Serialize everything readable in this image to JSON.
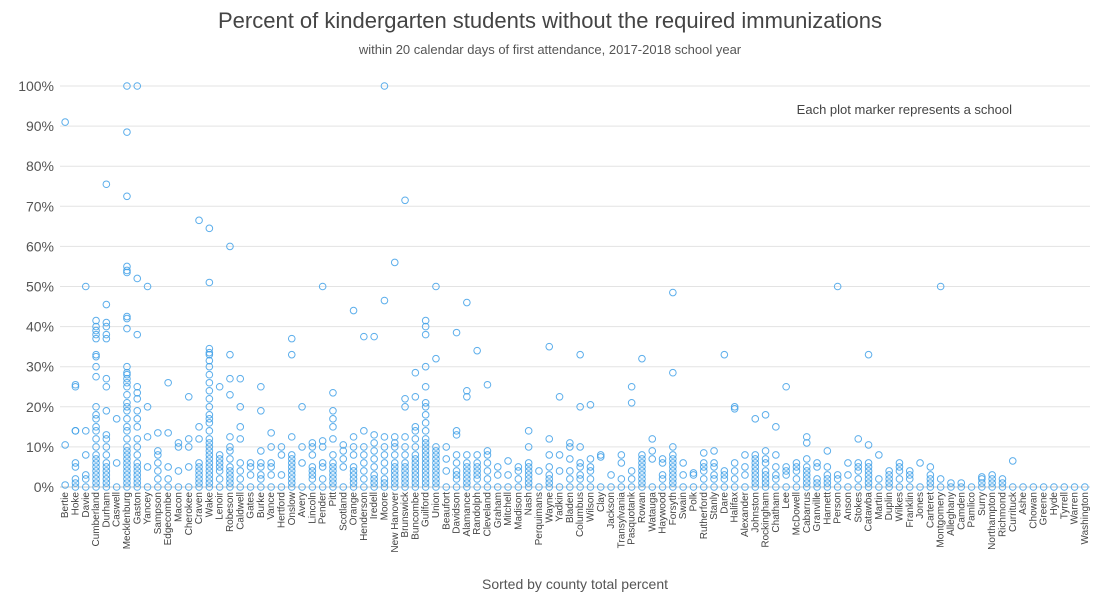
{
  "chart_data": {
    "type": "scatter",
    "title": "Percent of kindergarten students without the required immunizations",
    "subtitle": "within 20 calendar days of first attendance, 2017-2018 school year",
    "xlabel": "Sorted by county total percent",
    "ylabel": "",
    "annotation": "Each plot marker represents a school",
    "ylim": [
      0,
      100
    ],
    "yticks": [
      "0%",
      "10%",
      "20%",
      "30%",
      "40%",
      "50%",
      "60%",
      "70%",
      "80%",
      "90%",
      "100%"
    ],
    "grid": true,
    "marker_color": "#3fa0e8",
    "categories": [
      "Bertie",
      "Hoke",
      "Davie",
      "Cumberland",
      "Durham",
      "Caswell",
      "Mecklenburg",
      "Gaston",
      "Yancey",
      "Sampson",
      "Edgecombe",
      "Macon",
      "Cherokee",
      "Craven",
      "Wake",
      "Lenoir",
      "Robeson",
      "Caldwell",
      "Gates",
      "Burke",
      "Vance",
      "Hertford",
      "Onslow",
      "Avery",
      "Lincoln",
      "Pender",
      "Pitt",
      "Scotland",
      "Orange",
      "Henderson",
      "Iredell",
      "Moore",
      "New Hanover",
      "Brunswick",
      "Buncombe",
      "Guilford",
      "Union",
      "Beaufort",
      "Davidson",
      "Alamance",
      "Randolph",
      "Cleveland",
      "Graham",
      "Mitchell",
      "Madison",
      "Nash",
      "Perquimans",
      "Wayne",
      "Yadkin",
      "Bladen",
      "Columbus",
      "Wilson",
      "Clay",
      "Jackson",
      "Transylvania",
      "Pasquotank",
      "Rowan",
      "Watauga",
      "Haywood",
      "Forsyth",
      "Swain",
      "Polk",
      "Rutherford",
      "Stanly",
      "Dare",
      "Halifax",
      "Alexander",
      "Johnston",
      "Rockingham",
      "Chatham",
      "Lee",
      "McDowell",
      "Cabarrus",
      "Granville",
      "Harnett",
      "Person",
      "Anson",
      "Stokes",
      "Catawba",
      "Martin",
      "Duplin",
      "Wilkes",
      "Franklin",
      "Jones",
      "Carteret",
      "Montgomery",
      "Alleghany",
      "Camden",
      "Pamlico",
      "Surry",
      "Northampton",
      "Richmond",
      "Currituck",
      "Ashe",
      "Chowan",
      "Greene",
      "Hyde",
      "Tyrrell",
      "Warren",
      "Washington"
    ],
    "series": [
      {
        "category": "Bertie",
        "values": [
          91,
          10.5,
          0.5
        ]
      },
      {
        "category": "Hoke",
        "values": [
          25.5,
          25,
          14,
          14,
          6,
          5,
          2,
          1,
          0
        ]
      },
      {
        "category": "Davie",
        "values": [
          50,
          14,
          8,
          3,
          2,
          0
        ]
      },
      {
        "category": "Cumberland",
        "values": [
          41.5,
          40,
          39,
          38,
          37,
          33,
          32.5,
          30,
          27.5,
          20,
          18,
          17,
          15,
          14,
          12,
          10,
          8,
          7,
          6,
          5,
          4,
          3,
          2,
          1,
          0
        ]
      },
      {
        "category": "Durham",
        "values": [
          75.5,
          45.5,
          41,
          40,
          38,
          37,
          27,
          25,
          19,
          13,
          12,
          10,
          8,
          6,
          5,
          4,
          3,
          2,
          1,
          0
        ]
      },
      {
        "category": "Caswell",
        "values": [
          17,
          6,
          0
        ]
      },
      {
        "category": "Mecklenburg",
        "values": [
          100,
          88.5,
          72.5,
          55,
          54,
          53.5,
          42.5,
          42,
          39.5,
          30,
          28.5,
          28,
          27,
          26,
          25,
          23,
          21,
          20,
          19,
          17,
          15,
          14,
          12,
          10,
          9,
          8,
          7,
          6,
          5,
          4,
          3,
          2,
          1,
          0
        ]
      },
      {
        "category": "Gaston",
        "values": [
          100,
          52,
          38,
          25,
          23.5,
          22,
          19,
          17,
          15,
          12,
          10,
          8,
          6,
          5,
          4,
          3,
          2,
          1,
          0
        ]
      },
      {
        "category": "Yancey",
        "values": [
          50,
          20,
          12.5,
          5,
          0
        ]
      },
      {
        "category": "Sampson",
        "values": [
          13.5,
          9,
          8,
          6,
          4,
          2,
          0
        ]
      },
      {
        "category": "Edgecombe",
        "values": [
          26,
          13.5,
          5,
          2,
          0
        ]
      },
      {
        "category": "Macon",
        "values": [
          11,
          10,
          4,
          0
        ]
      },
      {
        "category": "Cherokee",
        "values": [
          22.5,
          12,
          10,
          5,
          0
        ]
      },
      {
        "category": "Craven",
        "values": [
          66.5,
          15,
          12,
          6,
          5,
          4,
          3,
          2,
          1,
          0
        ]
      },
      {
        "category": "Wake",
        "values": [
          64.5,
          51,
          34.5,
          33.5,
          33,
          31.5,
          30,
          28,
          26,
          24,
          22,
          20,
          18,
          17,
          16,
          14,
          12,
          11,
          10,
          9,
          8,
          7,
          6,
          5,
          4,
          3,
          2,
          1,
          0
        ]
      },
      {
        "category": "Lenoir",
        "values": [
          25,
          8,
          7,
          6,
          5,
          4,
          2,
          0
        ]
      },
      {
        "category": "Robeson",
        "values": [
          60,
          33,
          27,
          23,
          12.5,
          10,
          9,
          7,
          5,
          4,
          3,
          2,
          1,
          0
        ]
      },
      {
        "category": "Caldwell",
        "values": [
          27,
          20,
          15,
          12,
          6,
          4,
          2,
          0
        ]
      },
      {
        "category": "Gates",
        "values": [
          6,
          5,
          3,
          0
        ]
      },
      {
        "category": "Burke",
        "values": [
          25,
          19,
          9,
          6,
          5,
          3,
          2,
          0
        ]
      },
      {
        "category": "Vance",
        "values": [
          13.5,
          10,
          6,
          5,
          3,
          0
        ]
      },
      {
        "category": "Hertford",
        "values": [
          10,
          8,
          3,
          0
        ]
      },
      {
        "category": "Onslow",
        "values": [
          37,
          33,
          12.5,
          8,
          7,
          6,
          5,
          4,
          3,
          2,
          1,
          0
        ]
      },
      {
        "category": "Avery",
        "values": [
          20,
          10,
          6,
          0
        ]
      },
      {
        "category": "Lincoln",
        "values": [
          11,
          10,
          8,
          5,
          4,
          3,
          2,
          0
        ]
      },
      {
        "category": "Pender",
        "values": [
          50,
          11.5,
          10,
          6,
          5,
          2,
          0
        ]
      },
      {
        "category": "Pitt",
        "values": [
          23.5,
          19,
          17,
          15,
          12,
          8,
          6,
          5,
          4,
          3,
          2,
          1,
          0
        ]
      },
      {
        "category": "Scotland",
        "values": [
          10.5,
          9,
          7,
          5,
          0
        ]
      },
      {
        "category": "Orange",
        "values": [
          44,
          12.5,
          10,
          8,
          5,
          4,
          3,
          2,
          1,
          0
        ]
      },
      {
        "category": "Henderson",
        "values": [
          37.5,
          14,
          10,
          8,
          6,
          4,
          2,
          0
        ]
      },
      {
        "category": "Iredell",
        "values": [
          37.5,
          13,
          11,
          9,
          7,
          5,
          3,
          2,
          1,
          0
        ]
      },
      {
        "category": "Moore",
        "values": [
          100,
          46.5,
          12.5,
          10,
          8,
          6,
          4,
          2,
          1,
          0
        ]
      },
      {
        "category": "New Hanover",
        "values": [
          56,
          12.5,
          11,
          10,
          8,
          6,
          5,
          4,
          3,
          2,
          1,
          0
        ]
      },
      {
        "category": "Brunswick",
        "values": [
          71.5,
          22,
          20,
          12.5,
          10,
          8,
          6,
          5,
          4,
          3,
          2,
          1,
          0
        ]
      },
      {
        "category": "Buncombe",
        "values": [
          28.5,
          22.5,
          15,
          14,
          12,
          10,
          8,
          7,
          6,
          5,
          4,
          3,
          2,
          1,
          0
        ]
      },
      {
        "category": "Guilford",
        "values": [
          41.5,
          40,
          38,
          30,
          25,
          21,
          20,
          18,
          16,
          14,
          12,
          11,
          10,
          9,
          8,
          7,
          6,
          5,
          4,
          3,
          2,
          1,
          0
        ]
      },
      {
        "category": "Union",
        "values": [
          50,
          32,
          10,
          9,
          8,
          7,
          6,
          5,
          4,
          3,
          2,
          1,
          0
        ]
      },
      {
        "category": "Beaufort",
        "values": [
          10,
          7,
          4,
          0
        ]
      },
      {
        "category": "Davidson",
        "values": [
          38.5,
          14,
          13,
          8,
          6,
          4,
          3,
          2,
          0
        ]
      },
      {
        "category": "Alamance",
        "values": [
          46,
          24,
          22.5,
          8,
          6,
          5,
          4,
          3,
          2,
          1,
          0
        ]
      },
      {
        "category": "Randolph",
        "values": [
          34,
          8,
          6,
          5,
          4,
          3,
          2,
          0
        ]
      },
      {
        "category": "Cleveland",
        "values": [
          25.5,
          9,
          8,
          6,
          4,
          2,
          0
        ]
      },
      {
        "category": "Graham",
        "values": [
          5,
          3,
          0
        ]
      },
      {
        "category": "Mitchell",
        "values": [
          6.5,
          3,
          0
        ]
      },
      {
        "category": "Madison",
        "values": [
          5,
          4,
          2,
          0
        ]
      },
      {
        "category": "Nash",
        "values": [
          14,
          10,
          6,
          5,
          4,
          3,
          2,
          1,
          0
        ]
      },
      {
        "category": "Perquimans",
        "values": [
          4,
          0
        ]
      },
      {
        "category": "Wayne",
        "values": [
          35,
          12,
          8,
          5,
          3,
          2,
          1,
          0
        ]
      },
      {
        "category": "Yadkin",
        "values": [
          22.5,
          8,
          4,
          0
        ]
      },
      {
        "category": "Bladen",
        "values": [
          11,
          10,
          7,
          4,
          2,
          0
        ]
      },
      {
        "category": "Columbus",
        "values": [
          33,
          20,
          10,
          6,
          5,
          3,
          2,
          0
        ]
      },
      {
        "category": "Wilson",
        "values": [
          20.5,
          7,
          5,
          4,
          2,
          0
        ]
      },
      {
        "category": "Clay",
        "values": [
          8,
          7.5,
          0
        ]
      },
      {
        "category": "Jackson",
        "values": [
          3,
          0
        ]
      },
      {
        "category": "Transylvania",
        "values": [
          8,
          6,
          2,
          0
        ]
      },
      {
        "category": "Pasquotank",
        "values": [
          25,
          21,
          4,
          2,
          0
        ]
      },
      {
        "category": "Rowan",
        "values": [
          32,
          8,
          7,
          6,
          5,
          4,
          3,
          2,
          1,
          0
        ]
      },
      {
        "category": "Watauga",
        "values": [
          12,
          9,
          7,
          0
        ]
      },
      {
        "category": "Haywood",
        "values": [
          7,
          6,
          3,
          2,
          0
        ]
      },
      {
        "category": "Forsyth",
        "values": [
          48.5,
          28.5,
          10,
          8,
          7,
          6,
          5,
          4,
          3,
          2,
          1,
          0
        ]
      },
      {
        "category": "Swain",
        "values": [
          6,
          3,
          0
        ]
      },
      {
        "category": "Polk",
        "values": [
          3.5,
          3,
          0
        ]
      },
      {
        "category": "Rutherford",
        "values": [
          8.5,
          6,
          5,
          4,
          2,
          0
        ]
      },
      {
        "category": "Stanly",
        "values": [
          9,
          6,
          5,
          3,
          2,
          0
        ]
      },
      {
        "category": "Dare",
        "values": [
          33,
          4,
          3,
          2,
          0
        ]
      },
      {
        "category": "Halifax",
        "values": [
          20,
          19.5,
          6,
          4,
          2,
          0
        ]
      },
      {
        "category": "Alexander",
        "values": [
          8,
          5,
          3,
          0
        ]
      },
      {
        "category": "Johnston",
        "values": [
          17,
          8,
          7,
          6,
          5,
          4,
          3,
          2,
          1,
          0
        ]
      },
      {
        "category": "Rockingham",
        "values": [
          18,
          9,
          7,
          6,
          4,
          3,
          2,
          1,
          0
        ]
      },
      {
        "category": "Chatham",
        "values": [
          15,
          8,
          5,
          3,
          2,
          0
        ]
      },
      {
        "category": "Lee",
        "values": [
          25,
          5,
          4,
          3,
          0
        ]
      },
      {
        "category": "McDowell",
        "values": [
          6,
          5,
          4,
          2,
          0
        ]
      },
      {
        "category": "Cabarrus",
        "values": [
          12.5,
          11,
          7,
          5,
          4,
          3,
          2,
          1,
          0
        ]
      },
      {
        "category": "Granville",
        "values": [
          6,
          5,
          2,
          1,
          0
        ]
      },
      {
        "category": "Harnett",
        "values": [
          9,
          5,
          3,
          2,
          1,
          0
        ]
      },
      {
        "category": "Person",
        "values": [
          50,
          3,
          2,
          0
        ]
      },
      {
        "category": "Anson",
        "values": [
          6,
          3,
          0
        ]
      },
      {
        "category": "Stokes",
        "values": [
          12,
          6,
          5,
          4,
          2,
          0
        ]
      },
      {
        "category": "Catawba",
        "values": [
          33,
          10.5,
          6,
          5,
          4,
          3,
          2,
          1,
          0
        ]
      },
      {
        "category": "Martin",
        "values": [
          8,
          2,
          0
        ]
      },
      {
        "category": "Duplin",
        "values": [
          4,
          3,
          2,
          1,
          0
        ]
      },
      {
        "category": "Wilkes",
        "values": [
          6,
          5,
          4,
          2,
          0
        ]
      },
      {
        "category": "Franklin",
        "values": [
          4,
          3,
          2,
          0
        ]
      },
      {
        "category": "Jones",
        "values": [
          6,
          0
        ]
      },
      {
        "category": "Carteret",
        "values": [
          5,
          3,
          2,
          1,
          0
        ]
      },
      {
        "category": "Montgomery",
        "values": [
          50,
          2,
          0
        ]
      },
      {
        "category": "Alleghany",
        "values": [
          1,
          0
        ]
      },
      {
        "category": "Camden",
        "values": [
          1,
          0
        ]
      },
      {
        "category": "Pamlico",
        "values": [
          0
        ]
      },
      {
        "category": "Surry",
        "values": [
          2.5,
          2,
          1,
          0
        ]
      },
      {
        "category": "Northampton",
        "values": [
          3,
          2,
          1,
          0
        ]
      },
      {
        "category": "Richmond",
        "values": [
          2,
          1,
          0
        ]
      },
      {
        "category": "Currituck",
        "values": [
          6.5,
          0
        ]
      },
      {
        "category": "Ashe",
        "values": [
          0
        ]
      },
      {
        "category": "Chowan",
        "values": [
          0
        ]
      },
      {
        "category": "Greene",
        "values": [
          0
        ]
      },
      {
        "category": "Hyde",
        "values": [
          0
        ]
      },
      {
        "category": "Tyrrell",
        "values": [
          0
        ]
      },
      {
        "category": "Warren",
        "values": [
          0
        ]
      },
      {
        "category": "Washington",
        "values": [
          0
        ]
      }
    ]
  }
}
